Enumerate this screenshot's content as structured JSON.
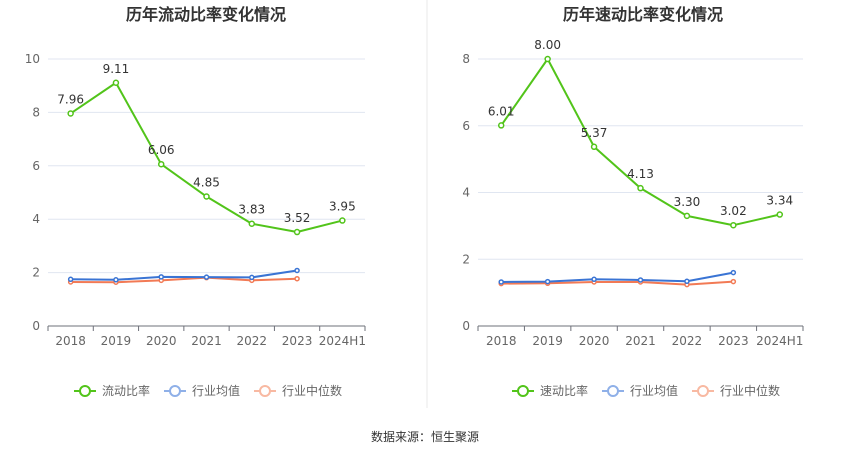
{
  "source_text": "数据来源：恒生聚源",
  "colors": {
    "main": "#52c41a",
    "industry_avg": "#3a74d4",
    "industry_median": "#f27a55",
    "legend_avg": "#8fb0e8",
    "legend_median": "#f8b9a2",
    "grid": "#e0e6f1",
    "axis": "#6e7079",
    "divider": "#e8e8e8"
  },
  "chart_data": [
    {
      "type": "line",
      "title": "历年流动比率变化情况",
      "categories": [
        "2018",
        "2019",
        "2020",
        "2021",
        "2022",
        "2023",
        "2024H1"
      ],
      "ylim": [
        0,
        10
      ],
      "yticks": [
        "0",
        "2",
        "4",
        "6",
        "8",
        "10"
      ],
      "grid": true,
      "legend_position": "bottom",
      "series": [
        {
          "name": "流动比率",
          "color_key": "main",
          "values": [
            7.96,
            9.11,
            6.06,
            4.85,
            3.83,
            3.52,
            3.95
          ],
          "labels": [
            "7.96",
            "9.11",
            "6.06",
            "4.85",
            "3.83",
            "3.52",
            "3.95"
          ]
        },
        {
          "name": "行业均值",
          "color_key": "industry_avg",
          "values": [
            1.75,
            1.73,
            1.84,
            1.83,
            1.82,
            2.08,
            null
          ]
        },
        {
          "name": "行业中位数",
          "color_key": "industry_median",
          "values": [
            1.65,
            1.64,
            1.71,
            1.81,
            1.71,
            1.77,
            null
          ]
        }
      ]
    },
    {
      "type": "line",
      "title": "历年速动比率变化情况",
      "categories": [
        "2018",
        "2019",
        "2020",
        "2021",
        "2022",
        "2023",
        "2024H1"
      ],
      "ylim": [
        0,
        8
      ],
      "yticks": [
        "0",
        "2",
        "4",
        "6",
        "8"
      ],
      "grid": true,
      "legend_position": "bottom",
      "series": [
        {
          "name": "速动比率",
          "color_key": "main",
          "values": [
            6.01,
            8.0,
            5.37,
            4.13,
            3.3,
            3.02,
            3.34
          ],
          "labels": [
            "6.01",
            "8.00",
            "5.37",
            "4.13",
            "3.30",
            "3.02",
            "3.34"
          ]
        },
        {
          "name": "行业均值",
          "color_key": "industry_avg",
          "values": [
            1.32,
            1.33,
            1.4,
            1.38,
            1.34,
            1.6,
            null
          ]
        },
        {
          "name": "行业中位数",
          "color_key": "industry_median",
          "values": [
            1.27,
            1.28,
            1.32,
            1.32,
            1.24,
            1.33,
            null
          ]
        }
      ]
    }
  ]
}
